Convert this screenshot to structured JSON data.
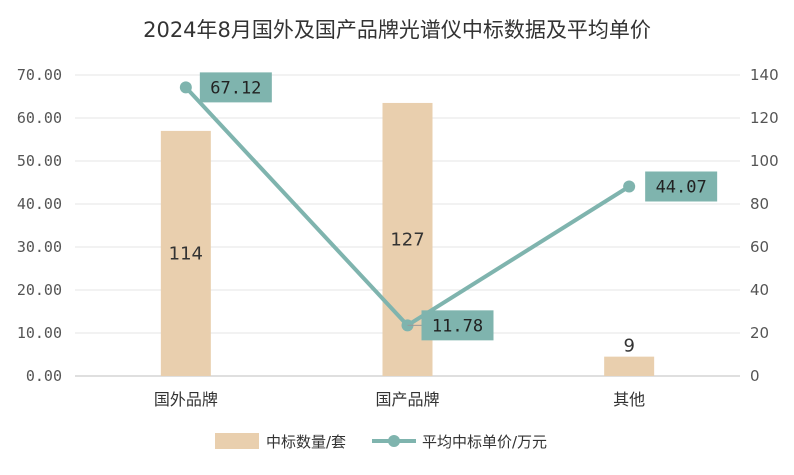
{
  "chart_data": {
    "title": "2024年8月国外及国产品牌光谱仪中标数据及平均单价",
    "categories": [
      "国外品牌",
      "国产品牌",
      "其他"
    ],
    "left_axis": {
      "min": 0,
      "max": 70,
      "step": 10,
      "tick_labels": [
        "0.00",
        "10.00",
        "20.00",
        "30.00",
        "40.00",
        "50.00",
        "60.00",
        "70.00"
      ]
    },
    "right_axis": {
      "min": 0,
      "max": 140,
      "step": 20,
      "tick_labels": [
        "0",
        "20",
        "40",
        "60",
        "80",
        "100",
        "120",
        "140"
      ]
    },
    "series": [
      {
        "name": "中标数量/套",
        "type": "bar",
        "axis": "right",
        "values": [
          114,
          127,
          9
        ],
        "labels": [
          "114",
          "127",
          "9"
        ],
        "color": "#e9cfae"
      },
      {
        "name": "平均中标单价/万元",
        "type": "line",
        "axis": "left",
        "values": [
          67.12,
          11.78,
          44.07
        ],
        "labels": [
          "67.12",
          "11.78",
          "44.07"
        ],
        "color": "#7fb4ae",
        "label_bg": "#7fb4ae"
      }
    ],
    "gridlines": true,
    "legend_position": "bottom"
  }
}
